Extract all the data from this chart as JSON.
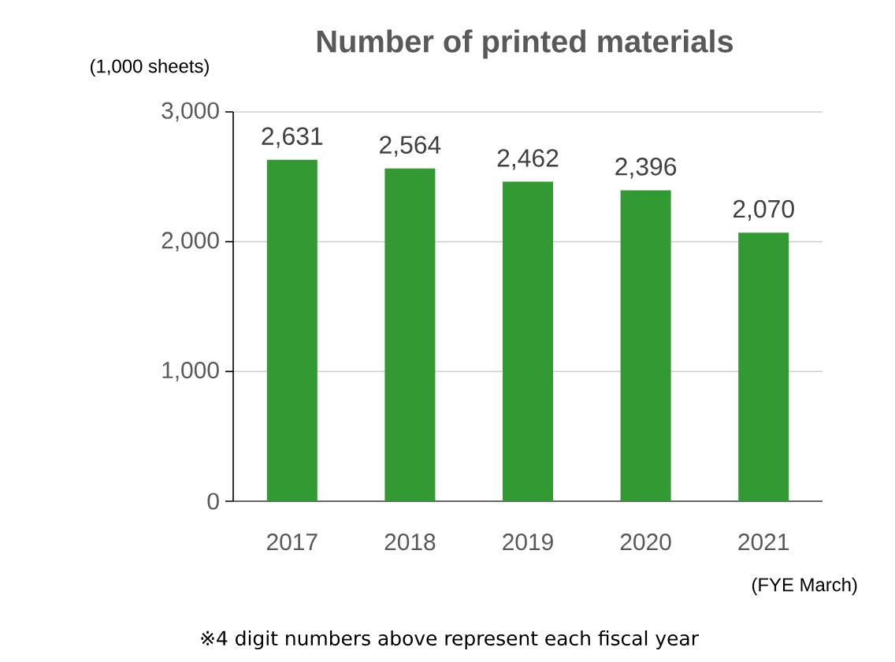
{
  "chart_data": {
    "type": "bar",
    "title": "Number of printed materials",
    "ylabel": "(1,000 sheets)",
    "xlabel": "(FYE March)",
    "categories": [
      "2017",
      "2018",
      "2019",
      "2020",
      "2021"
    ],
    "values": [
      2631,
      2564,
      2462,
      2396,
      2070
    ],
    "value_labels": [
      "2,631",
      "2,564",
      "2,462",
      "2,396",
      "2,070"
    ],
    "color": "#339933",
    "ylim": [
      0,
      3000
    ],
    "yticks": [
      0,
      {
        "value": 1000,
        "label": "1,000"
      },
      {
        "value": 2000,
        "label": "2,000"
      },
      {
        "value": 3000,
        "label": "3,000"
      }
    ],
    "grid": "y",
    "annotations": [
      "※4 digit numbers above represent each fiscal year"
    ]
  }
}
